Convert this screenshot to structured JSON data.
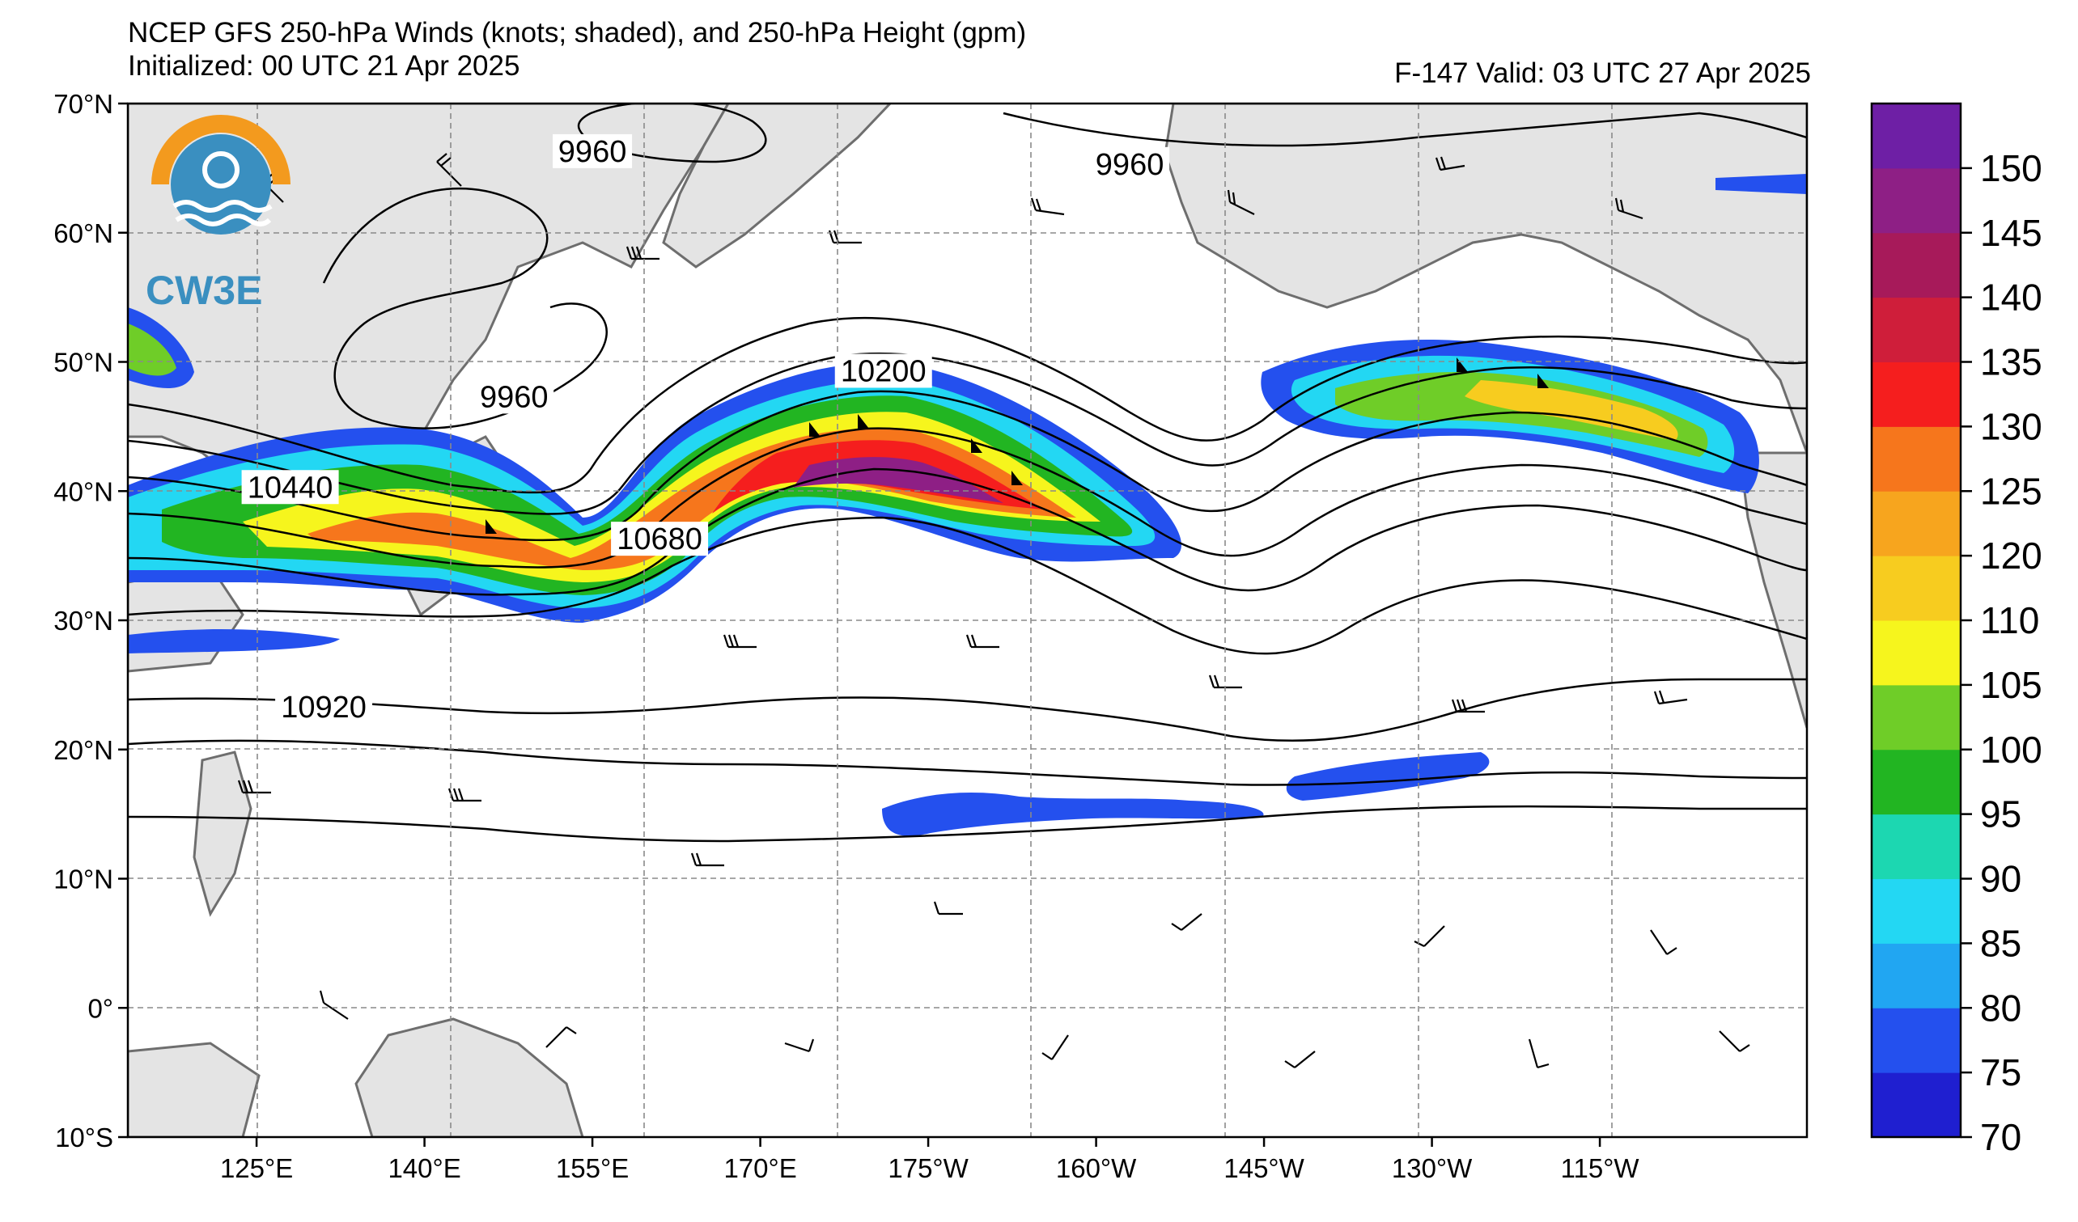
{
  "title": {
    "line1": "NCEP GFS 250-hPa Winds (knots; shaded), and 250-hPa Height (gpm)",
    "line2_left": "Initialized: 00 UTC 21 Apr 2025",
    "line2_right": "F-147  Valid: 03 UTC 27 Apr 2025"
  },
  "logo": {
    "text": "CW3E",
    "icon_name": "cw3e-logo-icon"
  },
  "axes": {
    "lat_labels": [
      "70°N",
      "60°N",
      "50°N",
      "40°N",
      "30°N",
      "20°N",
      "10°N",
      "0°",
      "10°S"
    ],
    "lon_labels": [
      "125°E",
      "140°E",
      "155°E",
      "170°E",
      "175°W",
      "160°W",
      "145°W",
      "130°W",
      "115°W"
    ]
  },
  "contour_labels": [
    {
      "text": "9960",
      "lon": 155,
      "lat": 66
    },
    {
      "text": "9960",
      "lon": 148,
      "lat": 47
    },
    {
      "text": "9960",
      "lon": 203,
      "lat": 65
    },
    {
      "text": "10200",
      "lon": 181,
      "lat": 49
    },
    {
      "text": "10440",
      "lon": 128,
      "lat": 40
    },
    {
      "text": "10680",
      "lon": 161,
      "lat": 36
    },
    {
      "text": "10920",
      "lon": 131,
      "lat": 23
    }
  ],
  "colorbar": {
    "ticks": [
      "70",
      "75",
      "80",
      "85",
      "90",
      "95",
      "100",
      "105",
      "110",
      "120",
      "125",
      "130",
      "135",
      "140",
      "145",
      "150"
    ],
    "colors": [
      "#1f1fd0",
      "#2450ee",
      "#21a6f2",
      "#23d7f3",
      "#1cd7b1",
      "#22b522",
      "#6fcd28",
      "#f6f51d",
      "#f7cc1f",
      "#f7a51e",
      "#f6761c",
      "#f51e1e",
      "#cf1e3a",
      "#a71a5a",
      "#8e1f85",
      "#6e1fa5"
    ]
  },
  "colors": {
    "land": "#e4e4e4",
    "coast": "#6e6e6e",
    "grid": "#8a8a8a",
    "contour": "#000000"
  }
}
